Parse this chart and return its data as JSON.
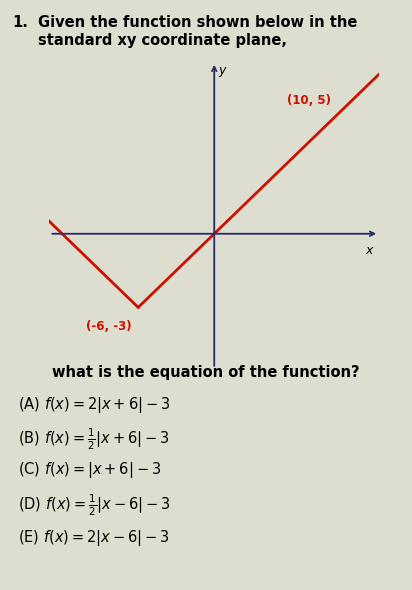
{
  "title_line1": "Given the function shown below in the",
  "title_line2": "standard xy coordinate plane,",
  "question": "what is the equation of the function?",
  "vertex": [
    -6,
    -3
  ],
  "point2": [
    10,
    5
  ],
  "func_color": "#cc1100",
  "axis_color": "#2a2a6a",
  "label_vertex": "(-6, -3)",
  "label_point2": "(10, 5)",
  "x_axis_range": [
    -13,
    13
  ],
  "y_axis_range": [
    -5.5,
    7
  ],
  "background_color": "#deded0",
  "number_label": "1.",
  "slope": 0.5
}
